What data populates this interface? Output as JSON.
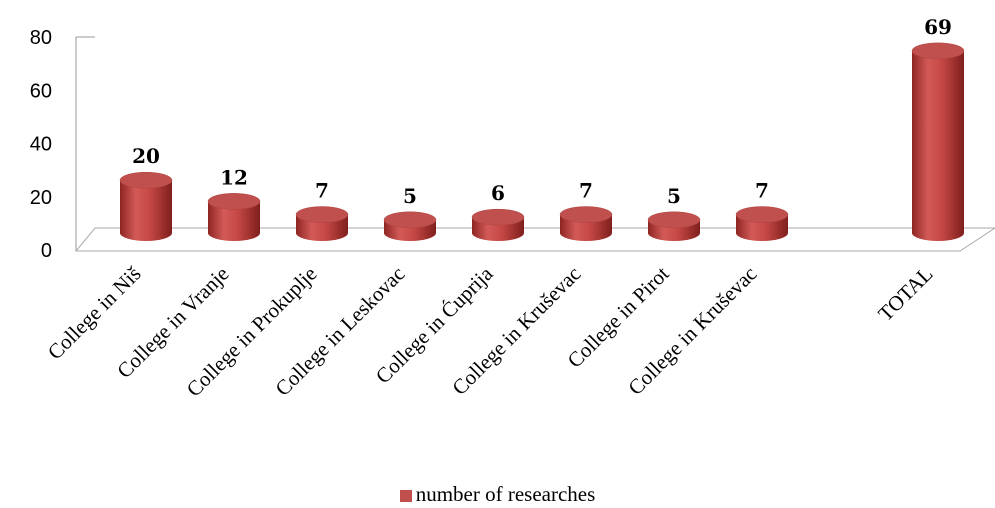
{
  "chart_data": {
    "type": "bar",
    "categories": [
      "College in Niš",
      "College in Vranje",
      "College in Prokuplje",
      "College in Leskovac",
      "College in Ćuprija",
      "College in Kruševac",
      "College in Pirot",
      "College in Kruševac",
      "TOTAL"
    ],
    "series": [
      {
        "name": "number of researches",
        "values": [
          20,
          12,
          7,
          5,
          6,
          7,
          5,
          7,
          69
        ],
        "color": "#c0504d"
      }
    ],
    "data_labels": [
      "20",
      "12",
      "7",
      "5",
      "6",
      "7",
      "5",
      "7",
      "69"
    ],
    "ylim": [
      0,
      80
    ],
    "yticks": [
      "0",
      "20",
      "40",
      "60",
      "80"
    ],
    "grid": false,
    "legend_position": "bottom",
    "style": "3d-cylinder"
  },
  "legend": {
    "label": "number of researches"
  }
}
